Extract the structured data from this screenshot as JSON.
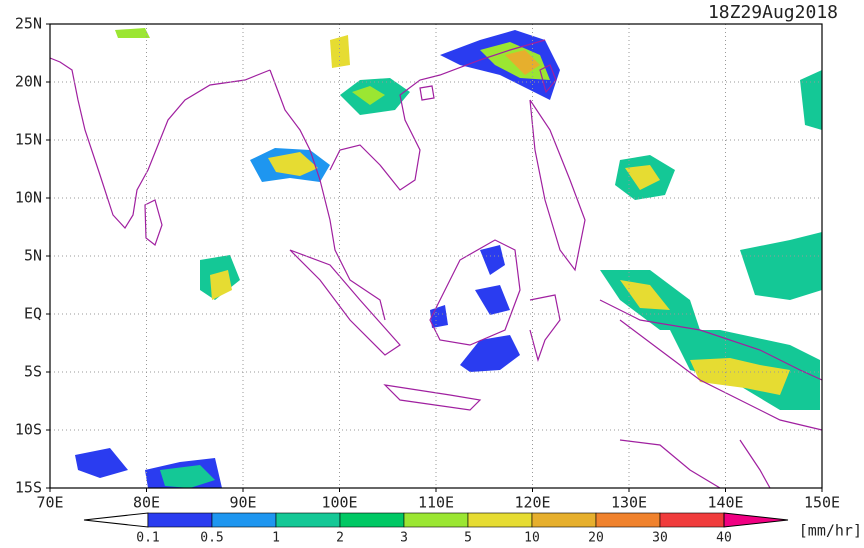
{
  "header": {
    "timestamp": "18Z29Aug2018"
  },
  "map": {
    "lat_labels": [
      "25N",
      "20N",
      "15N",
      "10N",
      "5N",
      "EQ",
      "5S",
      "10S",
      "15S"
    ],
    "lon_labels": [
      "70E",
      "80E",
      "90E",
      "100E",
      "110E",
      "120E",
      "130E",
      "140E",
      "150E"
    ]
  },
  "colorbar": {
    "labels": [
      "0.1",
      "0.5",
      "1",
      "2",
      "3",
      "5",
      "10",
      "20",
      "30",
      "40"
    ],
    "colors": [
      "#2a3cf0",
      "#1e96f0",
      "#14c896",
      "#00c864",
      "#9be632",
      "#e6dc32",
      "#e6af2d",
      "#f0822d",
      "#f03c3c"
    ],
    "low_color": "#ffffff",
    "high_color": "#f00082",
    "unit": "[mm/hr]"
  }
}
